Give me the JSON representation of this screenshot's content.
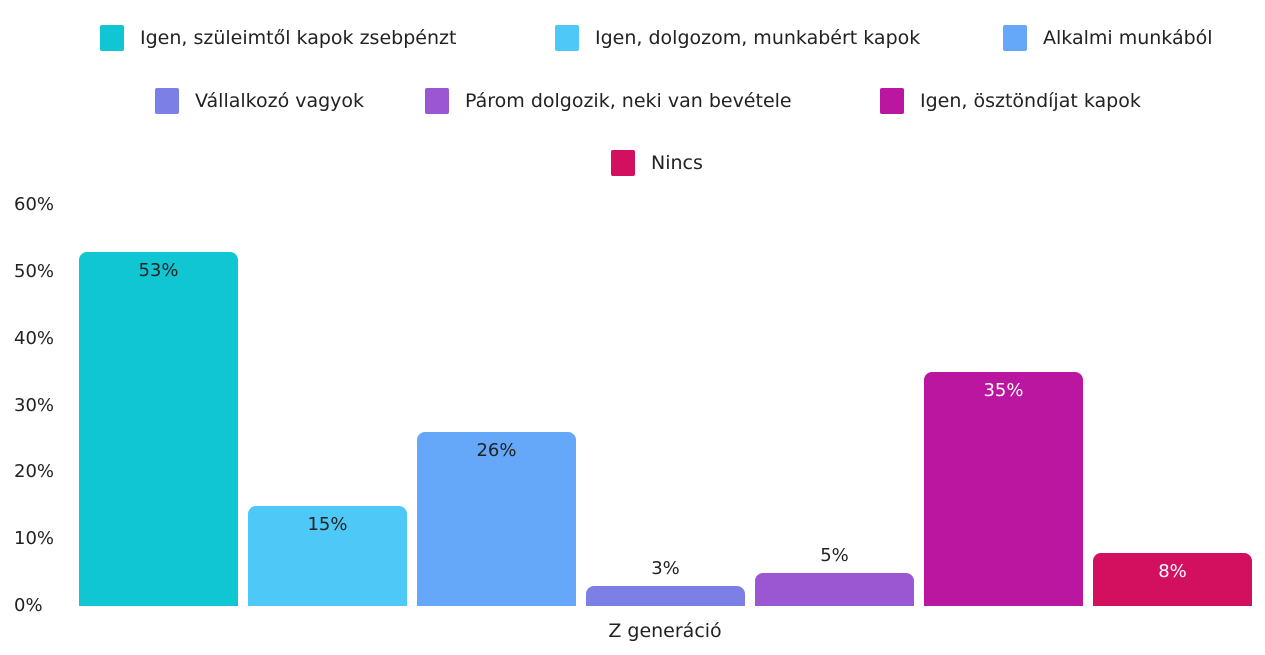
{
  "chart_data": {
    "type": "bar",
    "title": "",
    "xlabel": "Z generáció",
    "ylabel": "",
    "ylim": [
      0,
      60
    ],
    "yticks": [
      "0%",
      "10%",
      "20%",
      "30%",
      "40%",
      "50%",
      "60%"
    ],
    "grid": false,
    "legend_position": "top",
    "series": [
      {
        "name": "Igen, szüleimtől kapok zsebpénzt",
        "value": 53,
        "label": "53%",
        "color": "#0fc6d2",
        "label_color": "#222222"
      },
      {
        "name": "Igen, dolgozom, munkabért kapok",
        "value": 15,
        "label": "15%",
        "color": "#4ec8f7",
        "label_color": "#222222"
      },
      {
        "name": "Alkalmi munkából",
        "value": 26,
        "label": "26%",
        "color": "#65a7f8",
        "label_color": "#222222"
      },
      {
        "name": "Vállalkozó vagyok",
        "value": 3,
        "label": "3%",
        "color": "#7c80e6",
        "label_color": "#222222"
      },
      {
        "name": "Párom dolgozik, neki van bevétele",
        "value": 5,
        "label": "5%",
        "color": "#9b57d2",
        "label_color": "#222222"
      },
      {
        "name": "Igen, ösztöndíjat kapok",
        "value": 35,
        "label": "35%",
        "color": "#bb16a0",
        "label_color": "#ffffff"
      },
      {
        "name": "Nincs",
        "value": 8,
        "label": "8%",
        "color": "#d30f60",
        "label_color": "#ffffff"
      }
    ]
  }
}
